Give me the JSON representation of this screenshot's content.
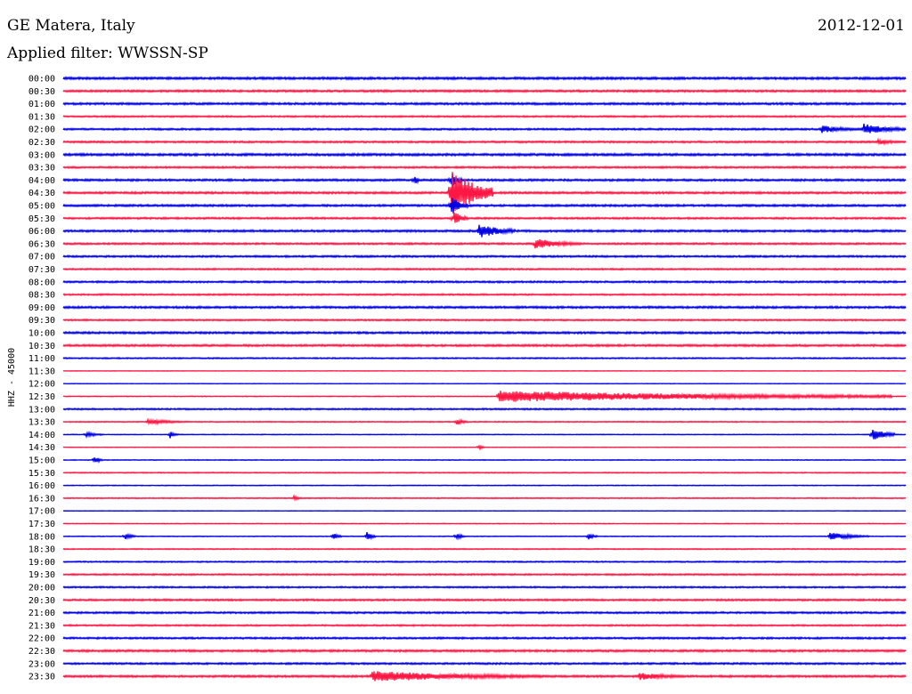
{
  "header": {
    "station": "GE Matera, Italy",
    "date": "2012-12-01",
    "filter": "Applied filter: WWSSN-SP"
  },
  "colors": {
    "trace_a": "#0000e6",
    "trace_b": "#ff1744",
    "background": "#ffffff"
  },
  "chart_data": {
    "type": "line",
    "title": "GE Matera, Italy",
    "ylabel": "HHZ - 45000",
    "rows": [
      "00:00",
      "00:30",
      "01:00",
      "01:30",
      "02:00",
      "02:30",
      "03:00",
      "03:30",
      "04:00",
      "04:30",
      "05:00",
      "05:30",
      "06:00",
      "06:30",
      "07:00",
      "07:30",
      "08:00",
      "08:30",
      "09:00",
      "09:30",
      "10:00",
      "10:30",
      "11:00",
      "11:30",
      "12:00",
      "12:30",
      "13:00",
      "13:30",
      "14:00",
      "14:30",
      "15:00",
      "15:30",
      "16:00",
      "16:30",
      "17:00",
      "17:30",
      "18:00",
      "18:30",
      "19:00",
      "19:30",
      "20:00",
      "20:30",
      "21:00",
      "21:30",
      "22:00",
      "22:30",
      "23:00",
      "23:30"
    ],
    "noise": [
      0.9,
      0.8,
      0.8,
      0.6,
      0.7,
      0.7,
      0.9,
      0.7,
      0.8,
      0.8,
      0.8,
      0.7,
      0.8,
      0.7,
      0.7,
      0.6,
      0.7,
      0.6,
      0.8,
      0.6,
      0.8,
      0.8,
      0.5,
      0.2,
      0.2,
      0.3,
      0.6,
      0.4,
      0.3,
      0.2,
      0.3,
      0.4,
      0.3,
      0.4,
      0.2,
      0.3,
      0.3,
      0.4,
      0.5,
      0.6,
      0.6,
      0.7,
      0.7,
      0.6,
      0.7,
      0.8,
      0.7,
      0.8
    ],
    "events": [
      {
        "row": "02:00",
        "minute": 27,
        "amplitude": 4,
        "duration": 1.5
      },
      {
        "row": "02:00",
        "minute": 28.5,
        "amplitude": 6,
        "duration": 1.5
      },
      {
        "row": "02:30",
        "minute": 29,
        "amplitude": 3,
        "duration": 1
      },
      {
        "row": "04:00",
        "minute": 12.5,
        "amplitude": 6,
        "duration": 0.2
      },
      {
        "row": "04:00",
        "minute": 13.8,
        "amplitude": 9,
        "duration": 0.4
      },
      {
        "row": "04:30",
        "minute": 13.8,
        "amplitude": 26,
        "duration": 1.5
      },
      {
        "row": "05:00",
        "minute": 13.8,
        "amplitude": 10,
        "duration": 0.6
      },
      {
        "row": "05:30",
        "minute": 13.9,
        "amplitude": 8,
        "duration": 0.5
      },
      {
        "row": "06:00",
        "minute": 14.8,
        "amplitude": 8,
        "duration": 1.3
      },
      {
        "row": "06:30",
        "minute": 16.8,
        "amplitude": 6,
        "duration": 1.6
      },
      {
        "row": "12:30",
        "minute": 15.5,
        "amplitude": 6,
        "duration": 14
      },
      {
        "row": "13:30",
        "minute": 3,
        "amplitude": 3,
        "duration": 1.5
      },
      {
        "row": "13:30",
        "minute": 14,
        "amplitude": 4,
        "duration": 0.4
      },
      {
        "row": "14:00",
        "minute": 0.8,
        "amplitude": 3,
        "duration": 0.6
      },
      {
        "row": "14:00",
        "minute": 3.8,
        "amplitude": 4,
        "duration": 0.3
      },
      {
        "row": "14:00",
        "minute": 28.8,
        "amplitude": 7,
        "duration": 0.8
      },
      {
        "row": "14:30",
        "minute": 14.8,
        "amplitude": 3,
        "duration": 0.2
      },
      {
        "row": "15:00",
        "minute": 1.1,
        "amplitude": 5,
        "duration": 0.3
      },
      {
        "row": "16:30",
        "minute": 8.2,
        "amplitude": 3,
        "duration": 0.3
      },
      {
        "row": "18:00",
        "minute": 2.2,
        "amplitude": 4,
        "duration": 0.4
      },
      {
        "row": "18:00",
        "minute": 9.6,
        "amplitude": 4,
        "duration": 0.3
      },
      {
        "row": "18:00",
        "minute": 10.8,
        "amplitude": 5,
        "duration": 0.3
      },
      {
        "row": "18:00",
        "minute": 14,
        "amplitude": 4,
        "duration": 0.3
      },
      {
        "row": "18:00",
        "minute": 18.7,
        "amplitude": 4,
        "duration": 0.3
      },
      {
        "row": "18:00",
        "minute": 27.3,
        "amplitude": 4,
        "duration": 1.4
      },
      {
        "row": "23:30",
        "minute": 11,
        "amplitude": 6,
        "duration": 6
      },
      {
        "row": "23:30",
        "minute": 20.5,
        "amplitude": 4,
        "duration": 2
      }
    ]
  }
}
